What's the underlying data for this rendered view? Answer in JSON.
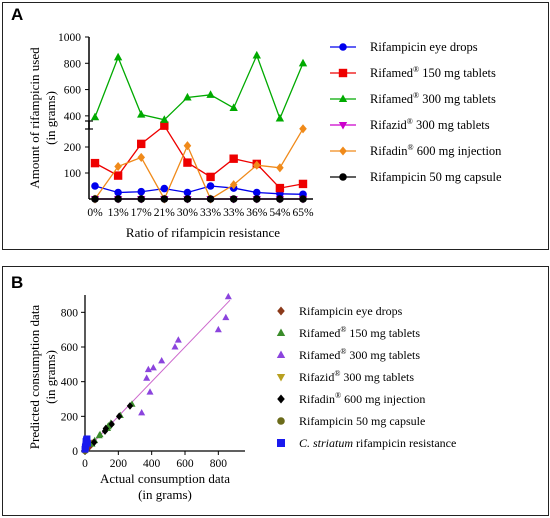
{
  "chart_data": [
    {
      "panel_label": "A",
      "type": "line",
      "xlabel": "Ratio of rifampicin resistance",
      "ylabel_line1": "Amount of rifampicin used",
      "ylabel_line2": "(in grams)",
      "categories": [
        "0%",
        "13%",
        "17%",
        "21%",
        "30%",
        "33%",
        "33%",
        "36%",
        "54%",
        "65%"
      ],
      "y_axis_break": {
        "lower": [
          0,
          300
        ],
        "upper": [
          300,
          1000
        ]
      },
      "yticks_lower": [
        100,
        200
      ],
      "yticks_upper": [
        400,
        600,
        800,
        1000
      ],
      "series": [
        {
          "name": "Rifampicin eye drops",
          "color": "#0000ee",
          "marker": "circle",
          "values": [
            50,
            25,
            28,
            40,
            25,
            50,
            42,
            25,
            20,
            18
          ]
        },
        {
          "name": "Rifamed",
          "reg": "®",
          "suffix": " 150 mg tablets",
          "color": "#ee0000",
          "marker": "square",
          "values": [
            138,
            90,
            212,
            282,
            140,
            85,
            155,
            135,
            42,
            58
          ]
        },
        {
          "name": "Rifamed",
          "reg": "®",
          "suffix": " 300 mg tablets",
          "color": "#00aa00",
          "marker": "triangle",
          "values": [
            390,
            845,
            410,
            370,
            540,
            560,
            460,
            860,
            380,
            800
          ]
        },
        {
          "name": "Rifazid",
          "reg": "®",
          "suffix": " 300 mg tablets",
          "color": "#cc00cc",
          "marker": "triangle-down",
          "values": [
            0,
            0,
            0,
            0,
            0,
            0,
            0,
            0,
            0,
            0
          ]
        },
        {
          "name": "Rifadin",
          "reg": "®",
          "suffix": " 600 mg injection",
          "color": "#f08a1a",
          "marker": "diamond",
          "values": [
            0,
            125,
            160,
            0,
            205,
            0,
            55,
            130,
            120,
            270
          ]
        },
        {
          "name": "Rifampicin 50 mg capsule",
          "color": "#000000",
          "marker": "circle",
          "values": [
            0,
            0,
            0,
            0,
            0,
            0,
            0,
            0,
            0,
            0
          ]
        }
      ]
    },
    {
      "panel_label": "B",
      "type": "scatter",
      "xlabel_line1": "Actual consumption data",
      "xlabel_line2": "(in grams)",
      "ylabel_line1": "Predicted consumption data",
      "ylabel_line2": "(in grams)",
      "xlim": [
        0,
        900
      ],
      "ylim": [
        0,
        900
      ],
      "xticks": [
        0,
        200,
        400,
        600,
        800
      ],
      "yticks": [
        0,
        200,
        400,
        600,
        800
      ],
      "fit_line": {
        "from": [
          0,
          0
        ],
        "to": [
          870,
          870
        ],
        "color": "#cc66cc"
      },
      "series": [
        {
          "name": "Rifampicin eye drops",
          "color": "#8b3a1a",
          "marker": "diamond",
          "points": [
            [
              20,
              18
            ],
            [
              25,
              22
            ],
            [
              28,
              30
            ],
            [
              40,
              38
            ],
            [
              42,
              45
            ],
            [
              50,
              48
            ],
            [
              25,
              28
            ],
            [
              18,
              20
            ]
          ]
        },
        {
          "name": "Rifamed",
          "reg": "®",
          "suffix": " 150 mg tablets",
          "color": "#3a8c2a",
          "marker": "triangle",
          "points": [
            [
              42,
              40
            ],
            [
              58,
              60
            ],
            [
              85,
              88
            ],
            [
              90,
              95
            ],
            [
              135,
              130
            ],
            [
              138,
              140
            ],
            [
              140,
              145
            ],
            [
              155,
              160
            ],
            [
              212,
              205
            ],
            [
              282,
              270
            ]
          ]
        },
        {
          "name": "Rifamed",
          "reg": "®",
          "suffix": " 300 mg tablets",
          "color": "#8b44dd",
          "marker": "triangle",
          "points": [
            [
              370,
              420
            ],
            [
              380,
              470
            ],
            [
              390,
              340
            ],
            [
              410,
              480
            ],
            [
              460,
              520
            ],
            [
              540,
              600
            ],
            [
              560,
              640
            ],
            [
              800,
              700
            ],
            [
              845,
              770
            ],
            [
              860,
              890
            ],
            [
              340,
              220
            ]
          ]
        },
        {
          "name": "Rifazid",
          "reg": "®",
          "suffix": " 300 mg tablets",
          "color": "#b8a020",
          "marker": "triangle-down",
          "points": [
            [
              0,
              2
            ],
            [
              2,
              4
            ],
            [
              4,
              3
            ]
          ]
        },
        {
          "name": "Rifadin",
          "reg": "®",
          "suffix": " 600 mg injection",
          "color": "#000000",
          "marker": "diamond",
          "points": [
            [
              55,
              50
            ],
            [
              120,
              115
            ],
            [
              125,
              130
            ],
            [
              160,
              155
            ],
            [
              205,
              200
            ],
            [
              270,
              260
            ]
          ]
        },
        {
          "name": "Rifampicin 50 mg capsule",
          "color": "#6b6b1a",
          "marker": "circle",
          "points": [
            [
              0,
              0
            ],
            [
              3,
              3
            ],
            [
              6,
              5
            ]
          ]
        },
        {
          "name": "C. striatum",
          "italic": true,
          "suffix": " rifampicin resistance",
          "color": "#1a1aee",
          "marker": "square",
          "points": [
            [
              0,
              10
            ],
            [
              2,
              20
            ],
            [
              5,
              35
            ],
            [
              8,
              50
            ],
            [
              10,
              60
            ],
            [
              12,
              70
            ],
            [
              15,
              45
            ],
            [
              3,
              25
            ],
            [
              6,
              55
            ],
            [
              9,
              65
            ]
          ]
        }
      ]
    }
  ]
}
